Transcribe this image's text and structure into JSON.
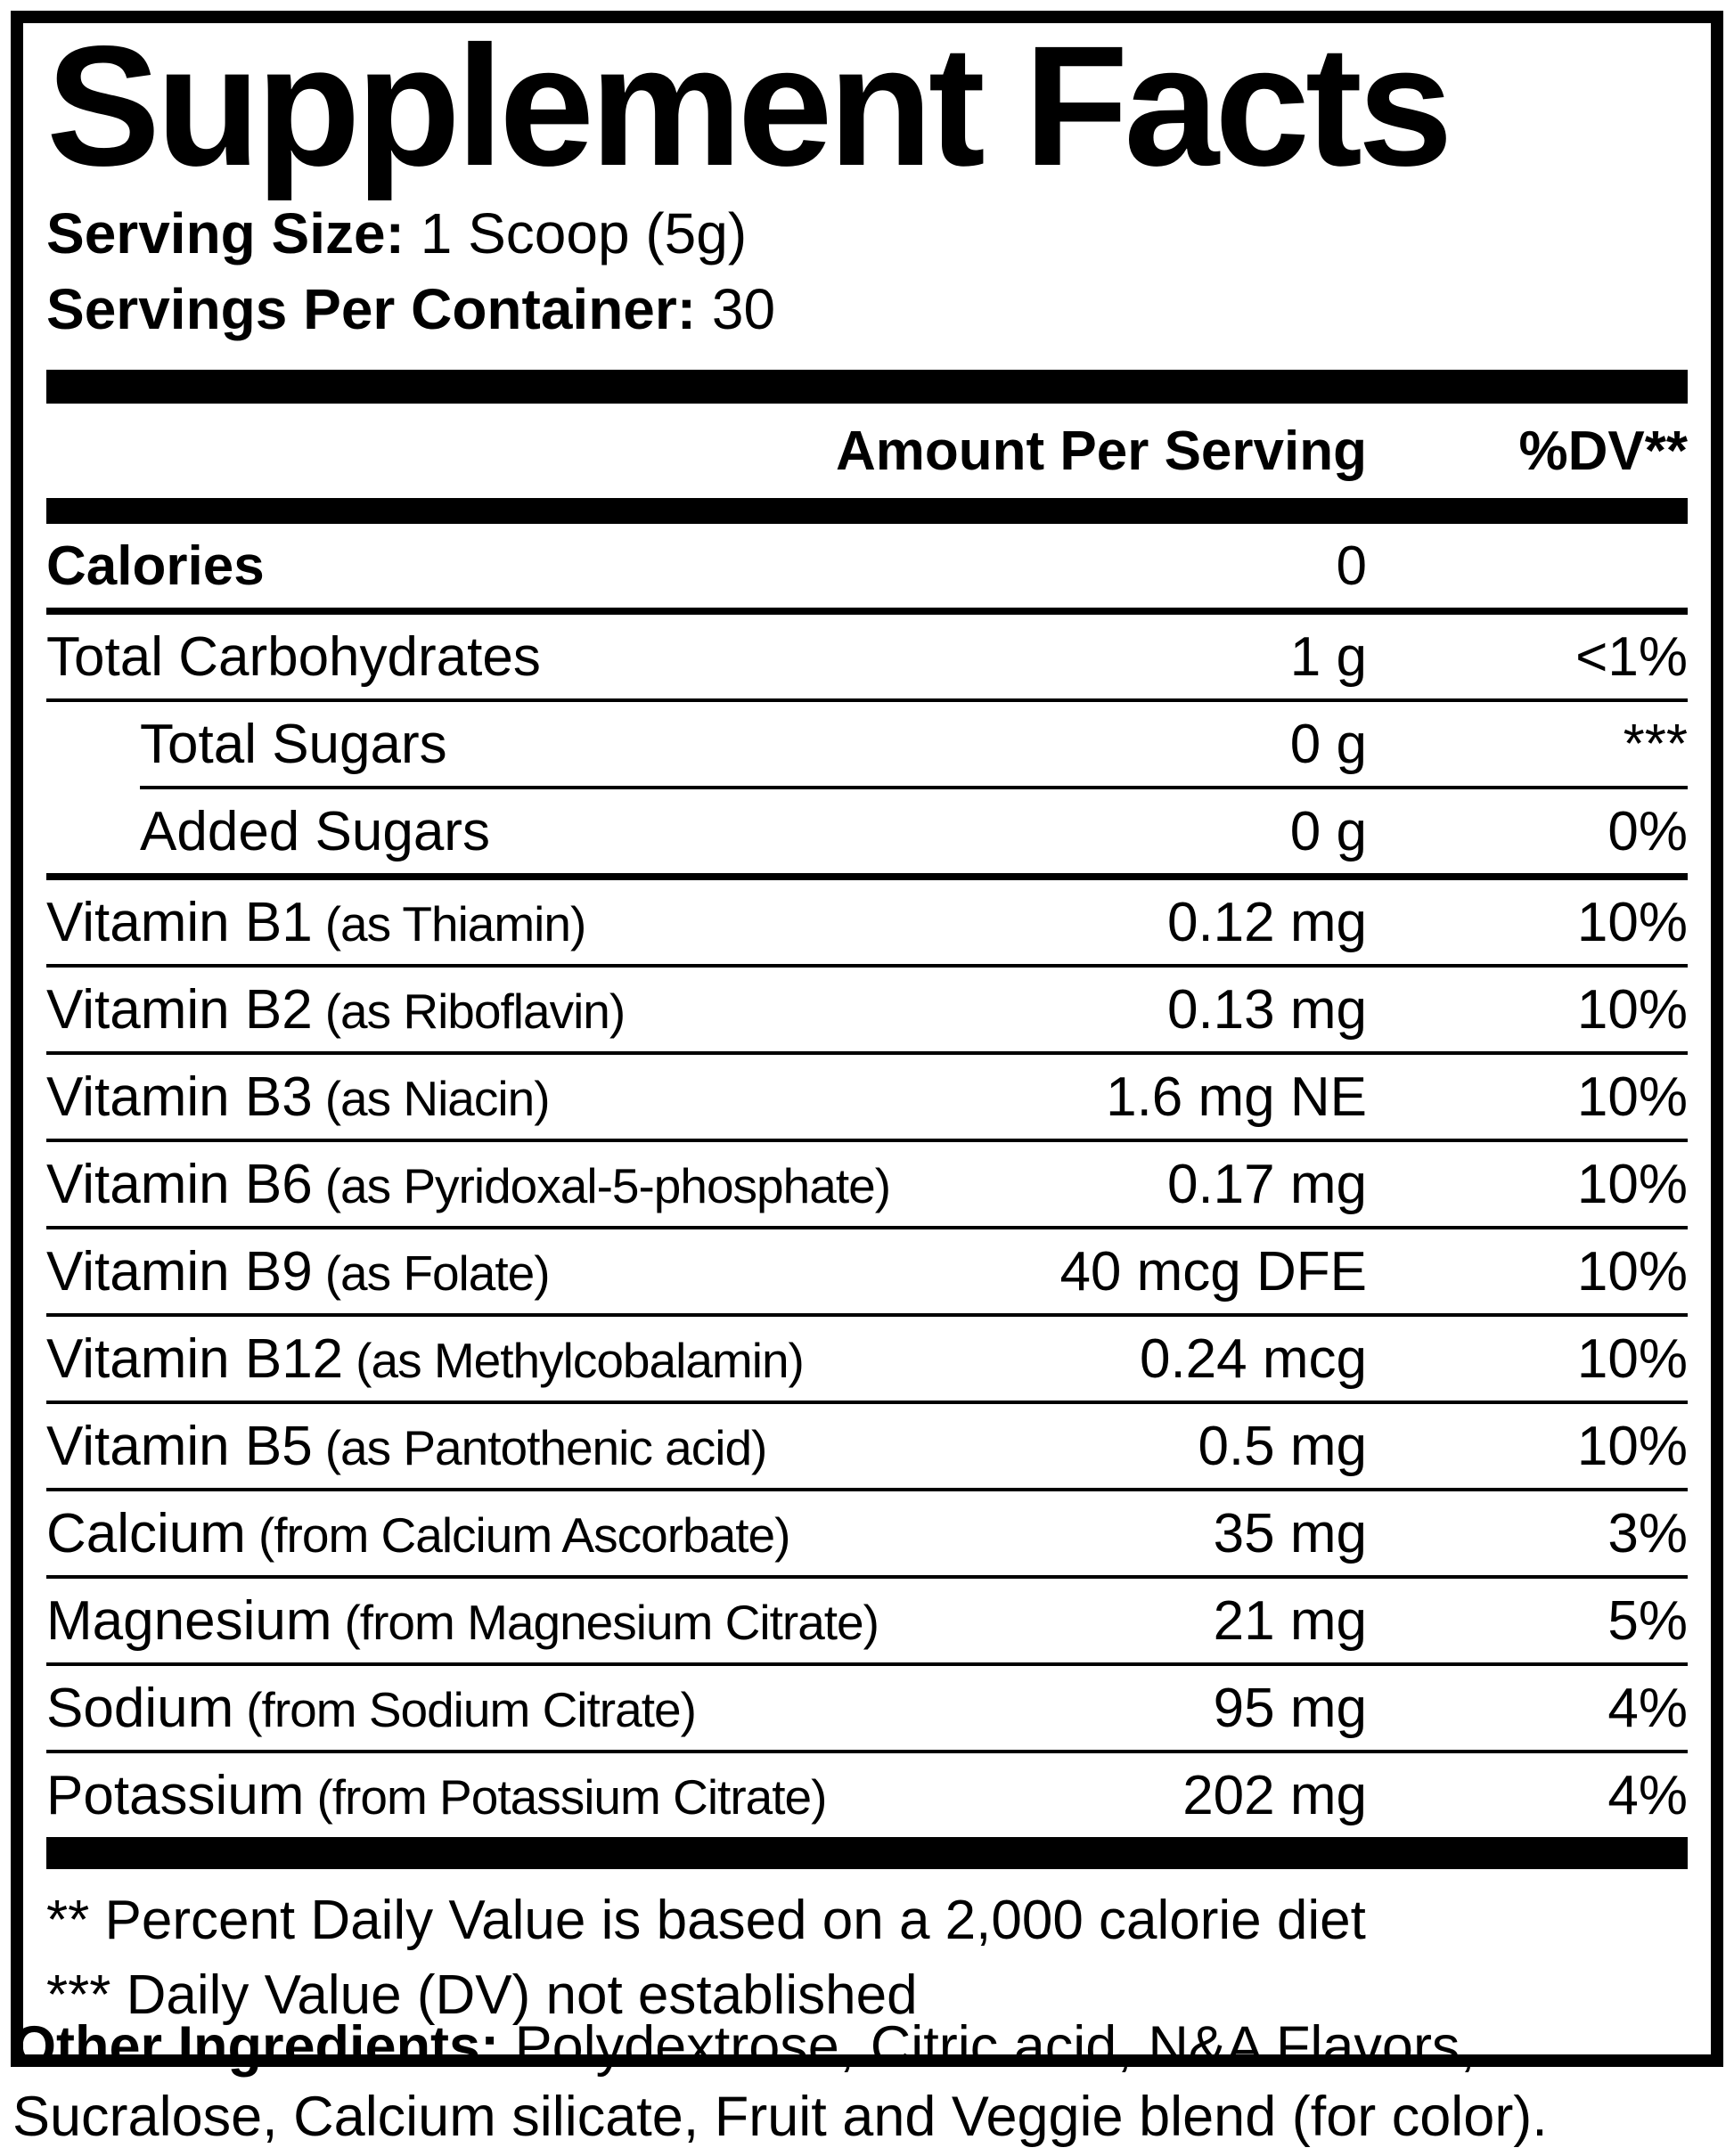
{
  "title": "Supplement Facts",
  "serving": {
    "size_label": "Serving Size:",
    "size_value": "1 Scoop (5g)",
    "per_container_label": "Servings Per Container:",
    "per_container_value": "30"
  },
  "header": {
    "amount": "Amount Per Serving",
    "dv": "%DV**"
  },
  "rows": [
    {
      "name": "Calories",
      "detail": "",
      "amount": "0",
      "dv": "",
      "bold": true,
      "indent": false,
      "divider_top": "none"
    },
    {
      "name": "Total Carbohydrates",
      "detail": "",
      "amount": "1 g",
      "dv": "<1%",
      "bold": false,
      "indent": false,
      "divider_top": "heavy"
    },
    {
      "name": "Total Sugars",
      "detail": "",
      "amount": "0 g",
      "dv": "***",
      "bold": false,
      "indent": true,
      "divider_top": "full"
    },
    {
      "name": "Added Sugars",
      "detail": "",
      "amount": "0 g",
      "dv": "0%",
      "bold": false,
      "indent": true,
      "divider_top": "indent"
    },
    {
      "name": "Vitamin B1",
      "detail": "(as Thiamin)",
      "amount": "0.12 mg",
      "dv": "10%",
      "bold": false,
      "indent": false,
      "divider_top": "heavy"
    },
    {
      "name": "Vitamin B2",
      "detail": "(as Riboflavin)",
      "amount": "0.13 mg",
      "dv": "10%",
      "bold": false,
      "indent": false,
      "divider_top": "full"
    },
    {
      "name": "Vitamin B3",
      "detail": "(as Niacin)",
      "amount": "1.6 mg NE",
      "dv": "10%",
      "bold": false,
      "indent": false,
      "divider_top": "full"
    },
    {
      "name": "Vitamin B6",
      "detail": "(as Pyridoxal-5-phosphate)",
      "amount": "0.17 mg",
      "dv": "10%",
      "bold": false,
      "indent": false,
      "divider_top": "full"
    },
    {
      "name": "Vitamin B9",
      "detail": "(as Folate)",
      "amount": "40 mcg DFE",
      "dv": "10%",
      "bold": false,
      "indent": false,
      "divider_top": "full"
    },
    {
      "name": "Vitamin B12",
      "detail": "(as Methylcobalamin)",
      "amount": "0.24 mcg",
      "dv": "10%",
      "bold": false,
      "indent": false,
      "divider_top": "full"
    },
    {
      "name": "Vitamin B5",
      "detail": "(as Pantothenic acid)",
      "amount": "0.5 mg",
      "dv": "10%",
      "bold": false,
      "indent": false,
      "divider_top": "full"
    },
    {
      "name": "Calcium",
      "detail": "(from Calcium Ascorbate)",
      "amount": "35 mg",
      "dv": "3%",
      "bold": false,
      "indent": false,
      "divider_top": "full"
    },
    {
      "name": "Magnesium",
      "detail": "(from Magnesium Citrate)",
      "amount": "21 mg",
      "dv": "5%",
      "bold": false,
      "indent": false,
      "divider_top": "full"
    },
    {
      "name": "Sodium",
      "detail": "(from Sodium Citrate)",
      "amount": "95 mg",
      "dv": "4%",
      "bold": false,
      "indent": false,
      "divider_top": "full"
    },
    {
      "name": "Potassium",
      "detail": "(from Potassium Citrate)",
      "amount": "202 mg",
      "dv": "4%",
      "bold": false,
      "indent": false,
      "divider_top": "full"
    }
  ],
  "footnotes": [
    "** Percent Daily Value is based on a 2,000 calorie diet",
    "*** Daily Value (DV) not established"
  ],
  "other_ingredients": {
    "label": "Other Ingredients:",
    "text": "Polydextrose, Citric acid, N&A Flavors, Sucralose, Calcium silicate, Fruit and Veggie blend (for color)."
  }
}
